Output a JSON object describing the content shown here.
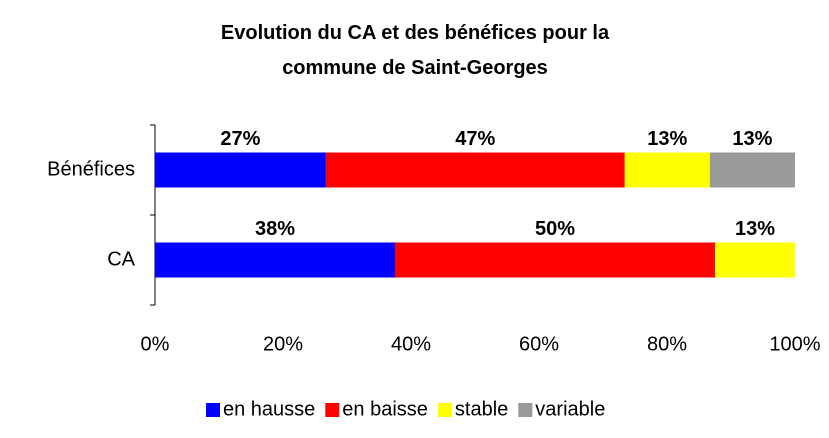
{
  "chart_data": {
    "type": "stacked-bar-horizontal",
    "title": "Evolution du CA et des bénéfices pour la commune de Saint-Georges",
    "categories": [
      "Bénéfices",
      "CA"
    ],
    "series": [
      {
        "name": "en hausse",
        "color": "#0000ff",
        "values": [
          26.7,
          37.5
        ],
        "value_labels": [
          "27%",
          "38%"
        ]
      },
      {
        "name": "en baisse",
        "color": "#ff0000",
        "values": [
          46.7,
          50
        ],
        "value_labels": [
          "47%",
          "50%"
        ]
      },
      {
        "name": "stable",
        "color": "#ffff00",
        "values": [
          13.3,
          12.5
        ],
        "value_labels": [
          "13%",
          "13%"
        ]
      },
      {
        "name": "variable",
        "color": "#999999",
        "values": [
          13.3,
          null
        ],
        "value_labels": [
          "13%",
          null
        ]
      }
    ],
    "xlim": [
      0,
      100
    ],
    "xticks": [
      {
        "value": 0,
        "label": "0%"
      },
      {
        "value": 20,
        "label": "20%"
      },
      {
        "value": 40,
        "label": "40%"
      },
      {
        "value": 60,
        "label": "60%"
      },
      {
        "value": 80,
        "label": "80%"
      },
      {
        "value": 100,
        "label": "100%"
      }
    ],
    "grid": false,
    "legend": "bottom"
  }
}
